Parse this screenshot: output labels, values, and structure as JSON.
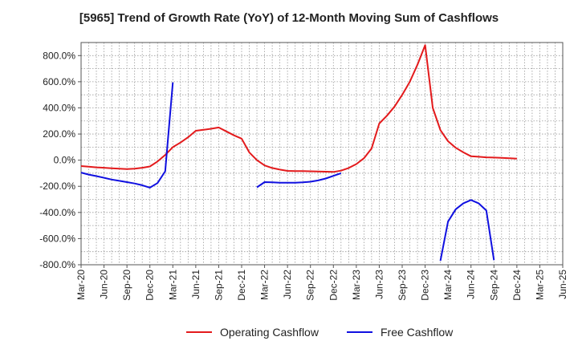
{
  "chart_data": {
    "type": "line",
    "title": "[5965]  Trend of Growth Rate (YoY) of 12-Month Moving Sum of Cashflows",
    "xlabel": "",
    "ylabel": "",
    "ylim": [
      -800,
      900
    ],
    "grid": true,
    "legend_position": "bottom",
    "x_tick_labels": [
      "Mar-20",
      "Jun-20",
      "Sep-20",
      "Dec-20",
      "Mar-21",
      "Jun-21",
      "Sep-21",
      "Dec-21",
      "Mar-22",
      "Jun-22",
      "Sep-22",
      "Dec-22",
      "Mar-23",
      "Jun-23",
      "Sep-23",
      "Dec-23",
      "Mar-24",
      "Jun-24",
      "Sep-24",
      "Dec-24",
      "Mar-25",
      "Jun-25"
    ],
    "y_ticks": [
      800,
      600,
      400,
      200,
      0,
      -200,
      -400,
      -600,
      -800
    ],
    "y_tick_labels": [
      "800.0%",
      "600.0%",
      "400.0%",
      "200.0%",
      "0.0%",
      "-200.0%",
      "-400.0%",
      "-600.0%",
      "-800.0%"
    ],
    "series": [
      {
        "name": "Operating Cashflow",
        "color": "#e31a1c",
        "points": [
          [
            "2020-03",
            -45
          ],
          [
            "2020-04",
            -50
          ],
          [
            "2020-05",
            -55
          ],
          [
            "2020-06",
            -58
          ],
          [
            "2020-07",
            -62
          ],
          [
            "2020-08",
            -65
          ],
          [
            "2020-09",
            -68
          ],
          [
            "2020-10",
            -65
          ],
          [
            "2020-11",
            -58
          ],
          [
            "2020-12",
            -48
          ],
          [
            "2021-01",
            -10
          ],
          [
            "2021-02",
            40
          ],
          [
            "2021-03",
            100
          ],
          [
            "2021-04",
            135
          ],
          [
            "2021-05",
            175
          ],
          [
            "2021-06",
            225
          ],
          [
            "2021-07",
            232
          ],
          [
            "2021-08",
            240
          ],
          [
            "2021-09",
            250
          ],
          [
            "2021-10",
            220
          ],
          [
            "2021-11",
            190
          ],
          [
            "2021-12",
            165
          ],
          [
            "2022-01",
            60
          ],
          [
            "2022-02",
            0
          ],
          [
            "2022-03",
            -40
          ],
          [
            "2022-04",
            -60
          ],
          [
            "2022-05",
            -72
          ],
          [
            "2022-06",
            -82
          ],
          [
            "2022-07",
            -84
          ],
          [
            "2022-08",
            -84
          ],
          [
            "2022-09",
            -85
          ],
          [
            "2022-10",
            -86
          ],
          [
            "2022-11",
            -88
          ],
          [
            "2022-12",
            -90
          ],
          [
            "2023-01",
            -80
          ],
          [
            "2023-02",
            -60
          ],
          [
            "2023-03",
            -30
          ],
          [
            "2023-04",
            15
          ],
          [
            "2023-05",
            90
          ],
          [
            "2023-06",
            280
          ],
          [
            "2023-07",
            340
          ],
          [
            "2023-08",
            410
          ],
          [
            "2023-09",
            500
          ],
          [
            "2023-10",
            600
          ],
          [
            "2023-11",
            730
          ],
          [
            "2023-12",
            880
          ],
          [
            "2024-01",
            400
          ],
          [
            "2024-02",
            230
          ],
          [
            "2024-03",
            145
          ],
          [
            "2024-04",
            95
          ],
          [
            "2024-05",
            60
          ],
          [
            "2024-06",
            30
          ],
          [
            "2024-07",
            26
          ],
          [
            "2024-08",
            22
          ],
          [
            "2024-09",
            20
          ],
          [
            "2024-10",
            18
          ],
          [
            "2024-11",
            15
          ],
          [
            "2024-12",
            12
          ]
        ]
      },
      {
        "name": "Free Cashflow",
        "color": "#1010e0",
        "segments": [
          [
            [
              "2020-03",
              -95
            ],
            [
              "2020-04",
              -110
            ],
            [
              "2020-05",
              -122
            ],
            [
              "2020-06",
              -135
            ],
            [
              "2020-07",
              -148
            ],
            [
              "2020-08",
              -158
            ],
            [
              "2020-09",
              -168
            ],
            [
              "2020-10",
              -178
            ],
            [
              "2020-11",
              -192
            ],
            [
              "2020-12",
              -210
            ],
            [
              "2021-01",
              -175
            ],
            [
              "2021-02",
              -85
            ],
            [
              "2021-03",
              595
            ]
          ],
          [
            [
              "2022-02",
              -208
            ],
            [
              "2022-03",
              -168
            ],
            [
              "2022-04",
              -170
            ],
            [
              "2022-05",
              -172
            ],
            [
              "2022-06",
              -173
            ],
            [
              "2022-07",
              -172
            ],
            [
              "2022-08",
              -170
            ],
            [
              "2022-09",
              -165
            ],
            [
              "2022-10",
              -155
            ],
            [
              "2022-11",
              -140
            ],
            [
              "2022-12",
              -120
            ],
            [
              "2023-01",
              -100
            ]
          ],
          [
            [
              "2024-02",
              -770
            ],
            [
              "2024-03",
              -470
            ],
            [
              "2024-04",
              -375
            ],
            [
              "2024-05",
              -330
            ],
            [
              "2024-06",
              -305
            ],
            [
              "2024-07",
              -330
            ],
            [
              "2024-08",
              -385
            ],
            [
              "2024-09",
              -765
            ]
          ]
        ]
      }
    ]
  }
}
